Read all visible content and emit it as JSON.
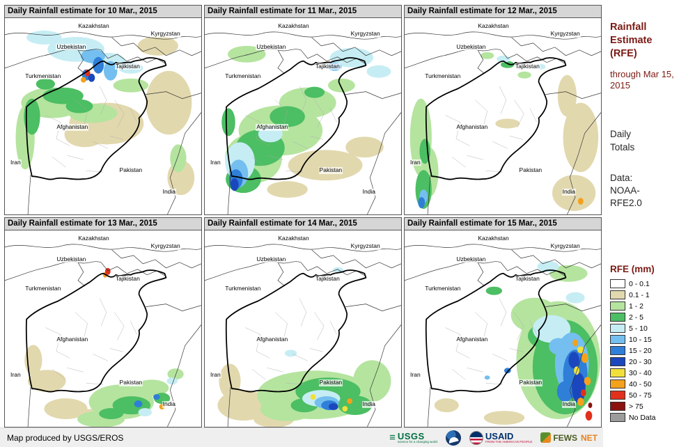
{
  "panels": [
    {
      "title": "Daily Rainfall estimate for 10 Mar., 2015",
      "blobs": [
        [
          "tan",
          150,
          152,
          55,
          30
        ],
        [
          "tan",
          242,
          122,
          34,
          46
        ],
        [
          "tan",
          226,
          40,
          30,
          14
        ],
        [
          "tan",
          118,
          168,
          30,
          18
        ],
        [
          "tan",
          260,
          230,
          20,
          25
        ],
        [
          "lightgreen",
          70,
          122,
          46,
          22
        ],
        [
          "lightgreen",
          30,
          172,
          14,
          46
        ],
        [
          "lightgreen",
          130,
          137,
          36,
          14
        ],
        [
          "lightgreen",
          186,
          97,
          26,
          10
        ],
        [
          "lightgreen",
          256,
          202,
          12,
          20
        ],
        [
          "green",
          86,
          112,
          30,
          12
        ],
        [
          "green",
          40,
          142,
          12,
          26
        ],
        [
          "green",
          110,
          127,
          20,
          10
        ],
        [
          "green",
          60,
          95,
          14,
          8
        ],
        [
          "cyan",
          105,
          45,
          42,
          18
        ],
        [
          "cyan",
          152,
          62,
          26,
          12
        ],
        [
          "cyan",
          58,
          28,
          26,
          10
        ],
        [
          "cyan",
          186,
          72,
          18,
          8
        ],
        [
          "lightblue",
          130,
          55,
          18,
          10
        ],
        [
          "lightblue",
          156,
          76,
          10,
          14
        ],
        [
          "blue",
          138,
          68,
          8,
          12
        ],
        [
          "blue",
          120,
          82,
          6,
          8
        ],
        [
          "darkblue",
          128,
          86,
          5,
          6
        ],
        [
          "red",
          122,
          79,
          4,
          5
        ],
        [
          "orange",
          116,
          89,
          4,
          4
        ]
      ]
    },
    {
      "title": "Daily Rainfall estimate for 11 Mar., 2015",
      "blobs": [
        [
          "tan",
          178,
          212,
          55,
          22
        ],
        [
          "tan",
          236,
          186,
          28,
          15
        ],
        [
          "tan",
          122,
          247,
          30,
          12
        ],
        [
          "lightgreen",
          112,
          162,
          62,
          36
        ],
        [
          "lightgreen",
          72,
          202,
          42,
          36
        ],
        [
          "lightgreen",
          152,
          122,
          42,
          22
        ],
        [
          "lightgreen",
          62,
          52,
          28,
          12
        ],
        [
          "lightgreen",
          202,
          97,
          20,
          10
        ],
        [
          "green",
          82,
          187,
          36,
          26
        ],
        [
          "green",
          57,
          232,
          26,
          20
        ],
        [
          "green",
          122,
          142,
          26,
          15
        ],
        [
          "green",
          162,
          107,
          15,
          8
        ],
        [
          "green",
          35,
          150,
          10,
          20
        ],
        [
          "cyan",
          52,
          207,
          22,
          28
        ],
        [
          "cyan",
          217,
          57,
          32,
          14
        ],
        [
          "cyan",
          257,
          77,
          18,
          9
        ],
        [
          "cyan",
          97,
          167,
          18,
          12
        ],
        [
          "lightblue",
          50,
          224,
          14,
          20
        ],
        [
          "lightblue",
          192,
          70,
          10,
          6
        ],
        [
          "blue",
          46,
          232,
          10,
          14
        ],
        [
          "darkblue",
          44,
          240,
          6,
          9
        ]
      ]
    },
    {
      "title": "Daily Rainfall estimate for 12 Mar., 2015",
      "blobs": [
        [
          "tan",
          260,
          172,
          26,
          50
        ],
        [
          "tan",
          250,
          252,
          32,
          26
        ],
        [
          "tan",
          240,
          112,
          14,
          30
        ],
        [
          "tan",
          152,
          152,
          18,
          7
        ],
        [
          "lightgreen",
          24,
          172,
          16,
          56
        ],
        [
          "lightgreen",
          36,
          222,
          14,
          36
        ],
        [
          "lightgreen",
          122,
          54,
          10,
          5
        ],
        [
          "lightgreen",
          177,
          82,
          10,
          5
        ],
        [
          "green",
          28,
          247,
          12,
          28
        ],
        [
          "green",
          30,
          192,
          8,
          18
        ],
        [
          "green",
          152,
          67,
          10,
          5
        ],
        [
          "cyan",
          146,
          59,
          10,
          5
        ],
        [
          "cyan",
          200,
          70,
          8,
          4
        ],
        [
          "lightblue",
          28,
          257,
          6,
          10
        ],
        [
          "blue",
          25,
          266,
          5,
          8
        ],
        [
          "orange",
          260,
          264,
          4,
          5
        ]
      ]
    },
    {
      "title": "Daily Rainfall estimate for 13 Mar., 2015",
      "blobs": [
        [
          "tan",
          62,
          217,
          28,
          16
        ],
        [
          "tan",
          90,
          257,
          32,
          15
        ],
        [
          "tan",
          42,
          187,
          13,
          22
        ],
        [
          "tan",
          132,
          267,
          25,
          10
        ],
        [
          "lightgreen",
          172,
          247,
          48,
          25
        ],
        [
          "lightgreen",
          142,
          272,
          35,
          12
        ],
        [
          "lightgreen",
          217,
          227,
          25,
          12
        ],
        [
          "lightgreen",
          252,
          207,
          12,
          8
        ],
        [
          "green",
          187,
          252,
          28,
          13
        ],
        [
          "green",
          157,
          264,
          18,
          8
        ],
        [
          "green",
          232,
          242,
          12,
          8
        ],
        [
          "cyan",
          207,
          262,
          10,
          6
        ],
        [
          "cyan",
          247,
          217,
          8,
          5
        ],
        [
          "blue",
          197,
          250,
          6,
          5
        ],
        [
          "blue",
          224,
          240,
          5,
          4
        ],
        [
          "orange",
          232,
          254,
          4,
          4
        ],
        [
          "orange",
          148,
          64,
          3,
          4
        ],
        [
          "red",
          152,
          59,
          4,
          5
        ]
      ]
    },
    {
      "title": "Daily Rainfall estimate for 14 Mar., 2015",
      "blobs": [
        [
          "tan",
          57,
          252,
          38,
          22
        ],
        [
          "tan",
          37,
          217,
          16,
          25
        ],
        [
          "tan",
          102,
          272,
          30,
          12
        ],
        [
          "lightgreen",
          162,
          237,
          85,
          35
        ],
        [
          "lightgreen",
          247,
          217,
          28,
          30
        ],
        [
          "lightgreen",
          122,
          257,
          40,
          18
        ],
        [
          "green",
          182,
          232,
          48,
          20
        ],
        [
          "green",
          222,
          252,
          25,
          14
        ],
        [
          "green",
          147,
          252,
          20,
          10
        ],
        [
          "cyan",
          172,
          242,
          28,
          12
        ],
        [
          "cyan",
          127,
          177,
          9,
          5
        ],
        [
          "cyan",
          197,
          57,
          8,
          4
        ],
        [
          "lightblue",
          180,
          248,
          18,
          9
        ],
        [
          "blue",
          184,
          252,
          12,
          7
        ],
        [
          "darkblue",
          190,
          254,
          7,
          5
        ],
        [
          "yellow",
          160,
          240,
          4,
          4
        ],
        [
          "yellow",
          207,
          257,
          4,
          4
        ],
        [
          "orange",
          214,
          246,
          4,
          4
        ]
      ]
    },
    {
      "title": "Daily Rainfall estimate for 15 Mar., 2015",
      "blobs": [
        [
          "tan",
          147,
          270,
          30,
          10
        ],
        [
          "tan",
          62,
          252,
          18,
          10
        ],
        [
          "lightgreen",
          227,
          187,
          62,
          85
        ],
        [
          "lightgreen",
          192,
          122,
          35,
          25
        ],
        [
          "lightgreen",
          242,
          62,
          28,
          12
        ],
        [
          "green",
          237,
          197,
          48,
          68
        ],
        [
          "green",
          207,
          152,
          25,
          18
        ],
        [
          "green",
          132,
          87,
          12,
          6
        ],
        [
          "cyan",
          217,
          142,
          28,
          20
        ],
        [
          "cyan",
          212,
          52,
          16,
          8
        ],
        [
          "cyan",
          252,
          97,
          14,
          8
        ],
        [
          "lightblue",
          247,
          192,
          25,
          45
        ],
        [
          "lightblue",
          227,
          167,
          14,
          12
        ],
        [
          "lightblue",
          122,
          212,
          4,
          3
        ],
        [
          "blue",
          252,
          207,
          18,
          35
        ],
        [
          "blue",
          237,
          232,
          12,
          15
        ],
        [
          "blue",
          152,
          202,
          5,
          4
        ],
        [
          "darkblue",
          257,
          227,
          10,
          22
        ],
        [
          "darkblue",
          250,
          187,
          8,
          12
        ],
        [
          "yellow",
          260,
          172,
          5,
          5
        ],
        [
          "yellow",
          254,
          202,
          4,
          6
        ],
        [
          "orange",
          266,
          184,
          5,
          7
        ],
        [
          "orange",
          270,
          217,
          5,
          6
        ],
        [
          "orange",
          260,
          247,
          5,
          6
        ],
        [
          "orange",
          252,
          162,
          4,
          5
        ],
        [
          "red",
          272,
          267,
          5,
          7
        ],
        [
          "red",
          264,
          234,
          4,
          5
        ],
        [
          "darkred",
          274,
          252,
          3,
          4
        ]
      ]
    }
  ],
  "countries": [
    "Kazakhstan",
    "Kyrgyzstan",
    "Uzbekistan",
    "Tajikistan",
    "Turkmenistan",
    "Afghanistan",
    "Iran",
    "Pakistan",
    "India"
  ],
  "palette": {
    "tan": "#E2D8AE",
    "lightgreen": "#B5E49F",
    "green": "#4CBE63",
    "cyan": "#C6EDF4",
    "lightblue": "#74BFEF",
    "blue": "#2F7ED8",
    "darkblue": "#1A47BE",
    "yellow": "#F1E03A",
    "orange": "#F4A11B",
    "red": "#E1301B",
    "darkred": "#8C1210",
    "gray": "#9C9C9C",
    "white": "#FFFFFF"
  },
  "sidebar": {
    "title": "Rainfall Estimate (RFE)",
    "through": "through Mar 15, 2015",
    "daily_totals": "Daily Totals",
    "data_source": "Data: NOAA-RFE2.0",
    "legend_title": "RFE (mm)",
    "legend": [
      {
        "label": "0 - 0.1",
        "color": "#FFFFFF"
      },
      {
        "label": "0.1 - 1",
        "color": "#E2D8AE"
      },
      {
        "label": "1 - 2",
        "color": "#B5E49F"
      },
      {
        "label": "2 - 5",
        "color": "#4CBE63"
      },
      {
        "label": "5 - 10",
        "color": "#C6EDF4"
      },
      {
        "label": "10 - 15",
        "color": "#74BFEF"
      },
      {
        "label": "15 - 20",
        "color": "#2F7ED8"
      },
      {
        "label": "20 - 30",
        "color": "#1A47BE"
      },
      {
        "label": "30 - 40",
        "color": "#F1E03A"
      },
      {
        "label": "40 - 50",
        "color": "#F4A11B"
      },
      {
        "label": "50 - 75",
        "color": "#E1301B"
      },
      {
        "label": "> 75",
        "color": "#8C1210"
      },
      {
        "label": "No Data",
        "color": "#9C9C9C"
      }
    ]
  },
  "footer": {
    "credit": "Map produced by USGS/EROS",
    "logos": {
      "usgs": {
        "text": "USGS",
        "tagline": "science for a changing world"
      },
      "usaid": {
        "text": "USAID",
        "tagline": "FROM THE AMERICAN PEOPLE"
      },
      "fewsnet": {
        "text_primary": "FEWS",
        "text_secondary": "NET"
      }
    }
  }
}
